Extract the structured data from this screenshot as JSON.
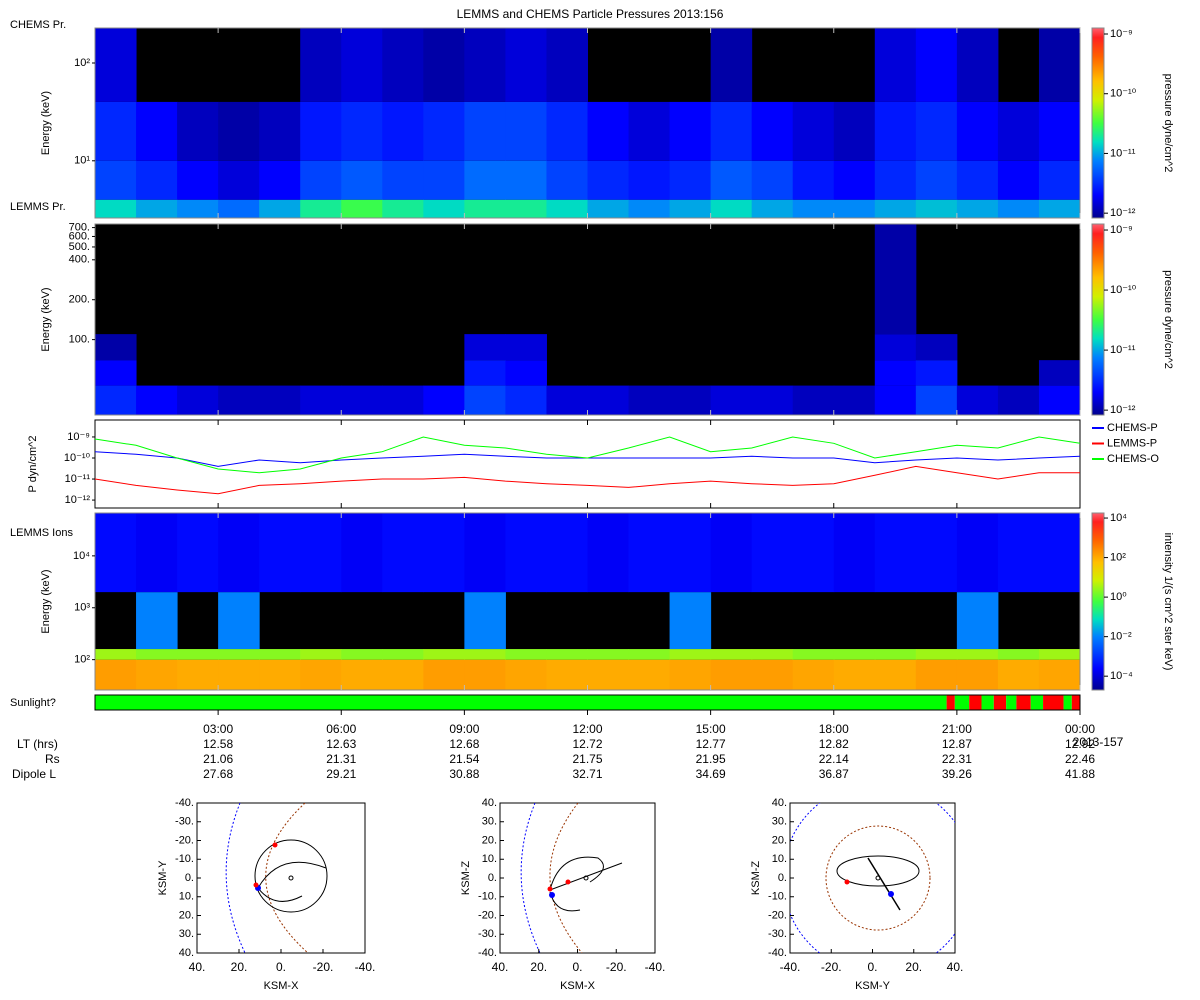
{
  "chart_data": [
    {
      "type": "heatmap",
      "title": "LEMMS and CHEMS Particle Pressures  2013:156",
      "label": "CHEMS Pr.",
      "ylabel": "Energy (keV)",
      "ylim": [
        2.6,
        228
      ],
      "log_y": true,
      "yticks": [
        {
          "value": 10,
          "label": "10¹"
        },
        {
          "value": 100,
          "label": "10²"
        }
      ],
      "x_edges": [
        0,
        1,
        2,
        3,
        4,
        5,
        6,
        7,
        8,
        9,
        10,
        11,
        12,
        13,
        14,
        15,
        16,
        17,
        18,
        19,
        20,
        21,
        22,
        23,
        24
      ],
      "y_edges": [
        2.6,
        4,
        10,
        40,
        228
      ],
      "z": [
        [
          1.5e-11,
          1e-11,
          8e-12,
          6e-12,
          1e-11,
          2e-11,
          3e-11,
          2e-11,
          1.5e-11,
          2e-11,
          2e-11,
          1.5e-11,
          1e-11,
          8e-12,
          1e-11,
          1.5e-11,
          1e-11,
          8e-12,
          8e-12,
          1e-11,
          1.2e-11,
          1e-11,
          8e-12,
          1e-11
        ],
        [
          4e-12,
          3e-12,
          2e-12,
          1.5e-12,
          2e-12,
          4e-12,
          5e-12,
          4e-12,
          4e-12,
          6e-12,
          6e-12,
          4e-12,
          3e-12,
          2.5e-12,
          3e-12,
          5e-12,
          4e-12,
          2.5e-12,
          2e-12,
          3e-12,
          4e-12,
          3e-12,
          2e-12,
          3e-12
        ],
        [
          3e-12,
          2e-12,
          1.2e-12,
          1e-12,
          1.2e-12,
          2.5e-12,
          3e-12,
          2.5e-12,
          3e-12,
          4e-12,
          4e-12,
          3e-12,
          2e-12,
          1.5e-12,
          2e-12,
          3e-12,
          2e-12,
          1.5e-12,
          1.2e-12,
          2.5e-12,
          3e-12,
          2e-12,
          1.5e-12,
          2e-12
        ],
        [
          1.5e-12,
          null,
          null,
          null,
          null,
          1.2e-12,
          1.5e-12,
          1.2e-12,
          1e-12,
          1.2e-12,
          1.5e-12,
          1.2e-12,
          null,
          null,
          null,
          1e-12,
          null,
          null,
          null,
          1.5e-12,
          2e-12,
          1.2e-12,
          null,
          1e-12
        ]
      ],
      "colorbar": {
        "label": "pressure dyne/cm^2",
        "clim": [
          8.3e-13,
          1.26e-09
        ],
        "log": true,
        "ticks": [
          {
            "value": 1e-09,
            "label": "10⁻⁹"
          },
          {
            "value": 1e-10,
            "label": "10⁻¹⁰"
          },
          {
            "value": 1e-11,
            "label": "10⁻¹¹"
          },
          {
            "value": 1e-12,
            "label": "10⁻¹²"
          }
        ]
      }
    },
    {
      "type": "heatmap",
      "label": "LEMMS Pr.",
      "ylabel": "Energy (keV)",
      "ylim": [
        27,
        745
      ],
      "log_y": true,
      "yticks": [
        {
          "value": 100,
          "label": "100."
        },
        {
          "value": 200,
          "label": "200."
        },
        {
          "value": 400,
          "label": "400."
        },
        {
          "value": 500,
          "label": "500."
        },
        {
          "value": 600,
          "label": "600."
        },
        {
          "value": 700,
          "label": "700."
        }
      ],
      "x_edges": [
        0,
        1,
        2,
        3,
        4,
        5,
        6,
        7,
        8,
        9,
        10,
        11,
        12,
        13,
        14,
        15,
        16,
        17,
        18,
        19,
        20,
        21,
        22,
        23,
        24
      ],
      "y_edges": [
        27,
        45,
        70,
        110,
        745
      ],
      "z": [
        [
          3e-12,
          2e-12,
          1.5e-12,
          1.2e-12,
          1.2e-12,
          1.5e-12,
          1.5e-12,
          1.5e-12,
          2e-12,
          4e-12,
          3e-12,
          1.5e-12,
          1.5e-12,
          1.2e-12,
          1.2e-12,
          1.5e-12,
          1.5e-12,
          1.2e-12,
          1.2e-12,
          2e-12,
          4e-12,
          1.5e-12,
          1.2e-12,
          2e-12
        ],
        [
          2e-12,
          null,
          null,
          null,
          null,
          null,
          null,
          null,
          null,
          2.5e-12,
          2e-12,
          null,
          null,
          null,
          null,
          null,
          null,
          null,
          null,
          2e-12,
          2.5e-12,
          null,
          null,
          1.2e-12
        ],
        [
          1e-12,
          null,
          null,
          null,
          null,
          null,
          null,
          null,
          null,
          1.5e-12,
          1.5e-12,
          null,
          null,
          null,
          null,
          null,
          null,
          null,
          null,
          1.5e-12,
          1.2e-12,
          null,
          null,
          null
        ],
        [
          null,
          null,
          null,
          null,
          null,
          null,
          null,
          null,
          null,
          null,
          null,
          null,
          null,
          null,
          null,
          null,
          null,
          null,
          null,
          1e-12,
          null,
          null,
          null,
          null
        ]
      ],
      "colorbar": {
        "label": "pressure dyne/cm^2",
        "clim": [
          8.3e-13,
          1.26e-09
        ],
        "log": true,
        "ticks": [
          {
            "value": 1e-09,
            "label": "10⁻⁹"
          },
          {
            "value": 1e-10,
            "label": "10⁻¹⁰"
          },
          {
            "value": 1e-11,
            "label": "10⁻¹¹"
          },
          {
            "value": 1e-12,
            "label": "10⁻¹²"
          }
        ]
      }
    },
    {
      "type": "line",
      "ylabel": "P dyn/cm^2",
      "ylim": [
        4.2e-13,
        6.4e-09
      ],
      "log_y": true,
      "yticks": [
        {
          "value": 1e-09,
          "label": "10⁻⁹"
        },
        {
          "value": 1e-10,
          "label": "10⁻¹⁰"
        },
        {
          "value": 1e-11,
          "label": "10⁻¹¹"
        },
        {
          "value": 1e-12,
          "label": "10⁻¹²"
        }
      ],
      "x": [
        0,
        1,
        2,
        3,
        4,
        5,
        6,
        7,
        8,
        9,
        10,
        11,
        12,
        13,
        14,
        15,
        16,
        17,
        18,
        19,
        20,
        21,
        22,
        23,
        24
      ],
      "series": [
        {
          "name": "CHEMS-P",
          "color": "#0000ff",
          "values": [
            2e-10,
            1.5e-10,
            1e-10,
            4e-11,
            8e-11,
            6e-11,
            8e-11,
            1e-10,
            1.2e-10,
            1.5e-10,
            1.2e-10,
            1e-10,
            1e-10,
            1e-10,
            1e-10,
            1e-10,
            1.2e-10,
            1e-10,
            1e-10,
            6e-11,
            8e-11,
            1e-10,
            8e-11,
            1e-10,
            1.2e-10
          ]
        },
        {
          "name": "LEMMS-P",
          "color": "#ff0000",
          "values": [
            1e-11,
            5e-12,
            3e-12,
            2e-12,
            5e-12,
            6e-12,
            8e-12,
            1e-11,
            1e-11,
            1.2e-11,
            8e-12,
            6e-12,
            5e-12,
            4e-12,
            6e-12,
            8e-12,
            6e-12,
            5e-12,
            6e-12,
            1.5e-11,
            4e-11,
            2e-11,
            1e-11,
            2e-11,
            2e-11
          ]
        },
        {
          "name": "CHEMS-O",
          "color": "#00ff00",
          "values": [
            8e-10,
            4e-10,
            1e-10,
            3e-11,
            2e-11,
            3e-11,
            1e-10,
            2e-10,
            1e-09,
            4e-10,
            3e-10,
            1.5e-10,
            1e-10,
            3e-10,
            1e-09,
            2e-10,
            3e-10,
            1e-09,
            5e-10,
            1e-10,
            2e-10,
            4e-10,
            3e-10,
            1e-09,
            5e-10
          ]
        }
      ]
    },
    {
      "type": "heatmap",
      "label": "LEMMS Ions",
      "ylabel": "Energy (keV)",
      "ylim": [
        26,
        67000
      ],
      "log_y": true,
      "yticks": [
        {
          "value": 100,
          "label": "10²"
        },
        {
          "value": 1000,
          "label": "10³"
        },
        {
          "value": 10000,
          "label": "10⁴"
        }
      ],
      "x_edges": [
        0,
        1,
        2,
        3,
        4,
        5,
        6,
        7,
        8,
        9,
        10,
        11,
        12,
        13,
        14,
        15,
        16,
        17,
        18,
        19,
        20,
        21,
        22,
        23,
        24
      ],
      "y_edges": [
        26,
        100,
        160,
        2000,
        67000
      ],
      "z": [
        [
          150,
          120,
          100,
          100,
          100,
          120,
          100,
          100,
          150,
          150,
          120,
          100,
          100,
          100,
          120,
          150,
          150,
          120,
          100,
          100,
          150,
          150,
          100,
          120
        ],
        [
          3,
          2,
          2,
          2,
          2,
          3,
          2,
          2,
          3,
          3,
          2,
          2,
          2,
          2,
          3,
          3,
          3,
          2,
          2,
          2,
          3,
          3,
          2,
          3
        ],
        [
          null,
          0.01,
          null,
          0.01,
          null,
          null,
          null,
          null,
          null,
          0.01,
          null,
          null,
          null,
          null,
          0.01,
          null,
          null,
          null,
          null,
          null,
          null,
          0.01,
          null,
          null
        ],
        [
          0.0003,
          0.0002,
          0.0003,
          0.0002,
          0.0003,
          0.0003,
          0.0002,
          0.0003,
          0.0003,
          0.0002,
          0.0003,
          0.0003,
          0.0002,
          0.0003,
          0.0003,
          0.0002,
          0.0003,
          0.0003,
          0.0002,
          0.0003,
          0.0003,
          0.0002,
          0.0003,
          0.0003
        ]
      ],
      "colorbar": {
        "label": "intensity 1/(s cm^2 ster keV)",
        "clim": [
          2e-05,
          18000.0
        ],
        "log": true,
        "ticks": [
          {
            "value": 10000,
            "label": "10⁴"
          },
          {
            "value": 100,
            "label": "10²"
          },
          {
            "value": 1,
            "label": "10⁰"
          },
          {
            "value": 0.01,
            "label": "10⁻²"
          },
          {
            "value": 0.0001,
            "label": "10⁻⁴"
          }
        ]
      }
    },
    {
      "type": "timeline",
      "label": "Sunlight?",
      "xlim": [
        0,
        24
      ],
      "xticks": [
        {
          "value": 3,
          "label": "03:00"
        },
        {
          "value": 6,
          "label": "06:00"
        },
        {
          "value": 9,
          "label": "09:00"
        },
        {
          "value": 12,
          "label": "12:00"
        },
        {
          "value": 15,
          "label": "15:00"
        },
        {
          "value": 18,
          "label": "18:00"
        },
        {
          "value": 21,
          "label": "21:00"
        },
        {
          "value": 24,
          "label": "00:00"
        }
      ],
      "segments": [
        {
          "start": 0,
          "end": 20.75,
          "color": "#00ff00"
        },
        {
          "start": 20.75,
          "end": 20.95,
          "color": "#ff0000"
        },
        {
          "start": 20.95,
          "end": 21.3,
          "color": "#00ff00"
        },
        {
          "start": 21.3,
          "end": 21.6,
          "color": "#ff0000"
        },
        {
          "start": 21.6,
          "end": 21.9,
          "color": "#00ff00"
        },
        {
          "start": 21.9,
          "end": 22.2,
          "color": "#ff0000"
        },
        {
          "start": 22.2,
          "end": 22.45,
          "color": "#00ff00"
        },
        {
          "start": 22.45,
          "end": 22.8,
          "color": "#ff0000"
        },
        {
          "start": 22.8,
          "end": 23.1,
          "color": "#00ff00"
        },
        {
          "start": 23.1,
          "end": 23.6,
          "color": "#ff0000"
        },
        {
          "start": 23.6,
          "end": 23.8,
          "color": "#00ff00"
        },
        {
          "start": 23.8,
          "end": 24,
          "color": "#ff0000"
        }
      ],
      "date_label": "2013-157",
      "ephemeris": {
        "row_labels": [
          "LT (hrs)",
          "Rs",
          "Dipole L"
        ],
        "rows": [
          [
            12.58,
            12.63,
            12.68,
            12.72,
            12.77,
            12.82,
            12.87,
            12.92
          ],
          [
            21.06,
            21.31,
            21.54,
            21.75,
            21.95,
            22.14,
            22.31,
            22.46
          ],
          [
            27.68,
            29.21,
            30.88,
            32.71,
            34.69,
            36.87,
            39.26,
            41.88
          ]
        ]
      }
    },
    {
      "type": "orbit",
      "xlabel": "KSM-X",
      "ylabel": "KSM-Y",
      "xlim": [
        40,
        -40
      ],
      "ylim": [
        40,
        -40
      ],
      "xticks": [
        {
          "value": 40,
          "label": "40."
        },
        {
          "value": 20,
          "label": "20."
        },
        {
          "value": 0,
          "label": "0."
        },
        {
          "value": -20,
          "label": "-20."
        },
        {
          "value": -40,
          "label": "-40."
        }
      ],
      "yticks": [
        {
          "value": -40,
          "label": "-40."
        },
        {
          "value": -30,
          "label": "-30."
        },
        {
          "value": -20,
          "label": "-20."
        },
        {
          "value": -10,
          "label": "-10."
        },
        {
          "value": 0,
          "label": "0."
        },
        {
          "value": 10,
          "label": "10."
        },
        {
          "value": 20,
          "label": "20."
        },
        {
          "value": 30,
          "label": "30."
        },
        {
          "value": 40,
          "label": "40."
        }
      ]
    },
    {
      "type": "orbit",
      "xlabel": "KSM-X",
      "ylabel": "KSM-Z",
      "xlim": [
        40,
        -40
      ],
      "ylim": [
        -40,
        40
      ],
      "xticks": [
        {
          "value": 40,
          "label": "40."
        },
        {
          "value": 20,
          "label": "20."
        },
        {
          "value": 0,
          "label": "0."
        },
        {
          "value": -20,
          "label": "-20."
        },
        {
          "value": -40,
          "label": "-40."
        }
      ],
      "yticks": [
        {
          "value": 40,
          "label": "40."
        },
        {
          "value": 30,
          "label": "30."
        },
        {
          "value": 20,
          "label": "20."
        },
        {
          "value": 10,
          "label": "10."
        },
        {
          "value": 0,
          "label": "0."
        },
        {
          "value": -10,
          "label": "-10."
        },
        {
          "value": -20,
          "label": "-20."
        },
        {
          "value": -30,
          "label": "-30."
        },
        {
          "value": -40,
          "label": "-40."
        }
      ]
    },
    {
      "type": "orbit",
      "xlabel": "KSM-Y",
      "ylabel": "KSM-Z",
      "xlim": [
        -40,
        40
      ],
      "ylim": [
        -40,
        40
      ],
      "xticks": [
        {
          "value": -40,
          "label": "-40."
        },
        {
          "value": -20,
          "label": "-20."
        },
        {
          "value": 0,
          "label": "0."
        },
        {
          "value": 20,
          "label": "20."
        },
        {
          "value": 40,
          "label": "40."
        }
      ],
      "yticks": [
        {
          "value": 40,
          "label": "40."
        },
        {
          "value": 30,
          "label": "30."
        },
        {
          "value": 20,
          "label": "20."
        },
        {
          "value": 10,
          "label": "10."
        },
        {
          "value": 0,
          "label": "0."
        },
        {
          "value": -10,
          "label": "-10."
        },
        {
          "value": -20,
          "label": "-20."
        },
        {
          "value": -30,
          "label": "-30."
        },
        {
          "value": -40,
          "label": "-40."
        }
      ]
    }
  ]
}
